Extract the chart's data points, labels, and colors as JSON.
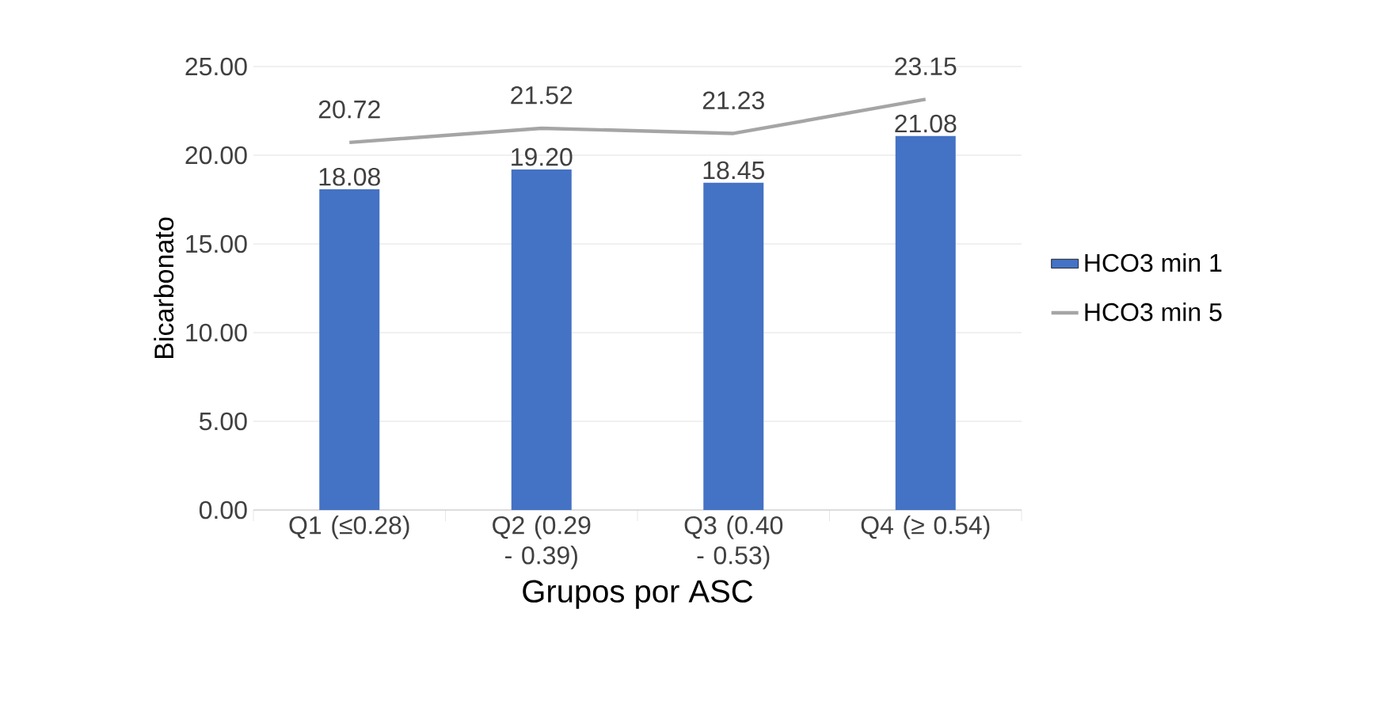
{
  "chart_data": {
    "type": "bar",
    "xlabel": "Grupos por ASC",
    "ylabel": "Bicarbonato",
    "categories": [
      "Q1 (≤0.28)",
      "Q2 (0.29 - 0.39)",
      "Q3 (0.40 - 0.53)",
      "Q4 (≥ 0.54)"
    ],
    "series": [
      {
        "name": "HCO3 min 1",
        "color": "#4472c4",
        "values": [
          18.08,
          19.2,
          18.45,
          21.08
        ],
        "value_labels": [
          "18.08",
          "19.20",
          "18.45",
          "21.08"
        ]
      },
      {
        "name": "HCO3 min 5",
        "type": "line",
        "color": "#a5a5a5",
        "values": [
          20.72,
          21.52,
          21.23,
          23.15
        ],
        "value_labels": [
          "20.72",
          "21.52",
          "21.23",
          "23.15"
        ]
      }
    ],
    "ylim": [
      0,
      25
    ],
    "yticks": [
      {
        "value": 0,
        "label": "0.00"
      },
      {
        "value": 5,
        "label": "5.00"
      },
      {
        "value": 10,
        "label": "10.00"
      },
      {
        "value": 15,
        "label": "15.00"
      },
      {
        "value": 20,
        "label": "20.00"
      },
      {
        "value": 25,
        "label": "25.00"
      }
    ],
    "grid": "y",
    "legend": "right"
  }
}
